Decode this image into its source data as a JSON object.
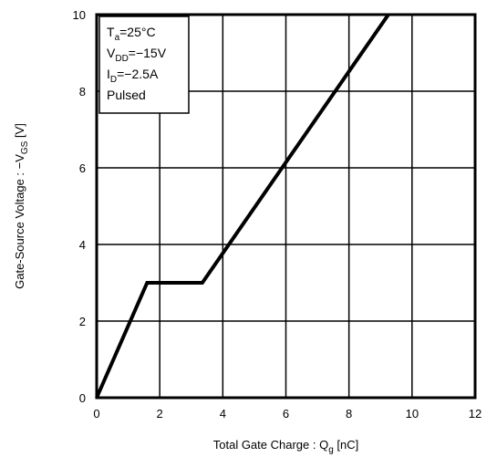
{
  "chart_data": {
    "type": "line",
    "xlabel": {
      "main": "Total Gate Charge : Q",
      "sub": "g",
      "suffix": "  [nC]"
    },
    "ylabel": {
      "main": "Gate-Source Voltage : −V",
      "sub": "GS",
      "suffix": " [V]"
    },
    "xlim": [
      0,
      12
    ],
    "ylim": [
      0,
      10
    ],
    "xticks": [
      "0",
      "2",
      "4",
      "6",
      "8",
      "10",
      "12"
    ],
    "yticks": [
      "0",
      "2",
      "4",
      "6",
      "8",
      "10"
    ],
    "grid": true,
    "series": [
      {
        "x": [
          0,
          1.6,
          3.35,
          9.25
        ],
        "y": [
          0,
          3.0,
          3.0,
          10.0
        ]
      }
    ],
    "conditions": [
      {
        "main": "T",
        "sub": "a",
        "rest": "=25°C"
      },
      {
        "main": "V",
        "sub": "DD",
        "rest": "=−15V"
      },
      {
        "main": "I",
        "sub": "D",
        "rest": "=−2.5A"
      },
      {
        "main": "Pulsed",
        "sub": "",
        "rest": ""
      }
    ],
    "legend_position": "top-left",
    "colors": {
      "line": "#000000",
      "grid": "#000000",
      "frame": "#000000"
    }
  }
}
